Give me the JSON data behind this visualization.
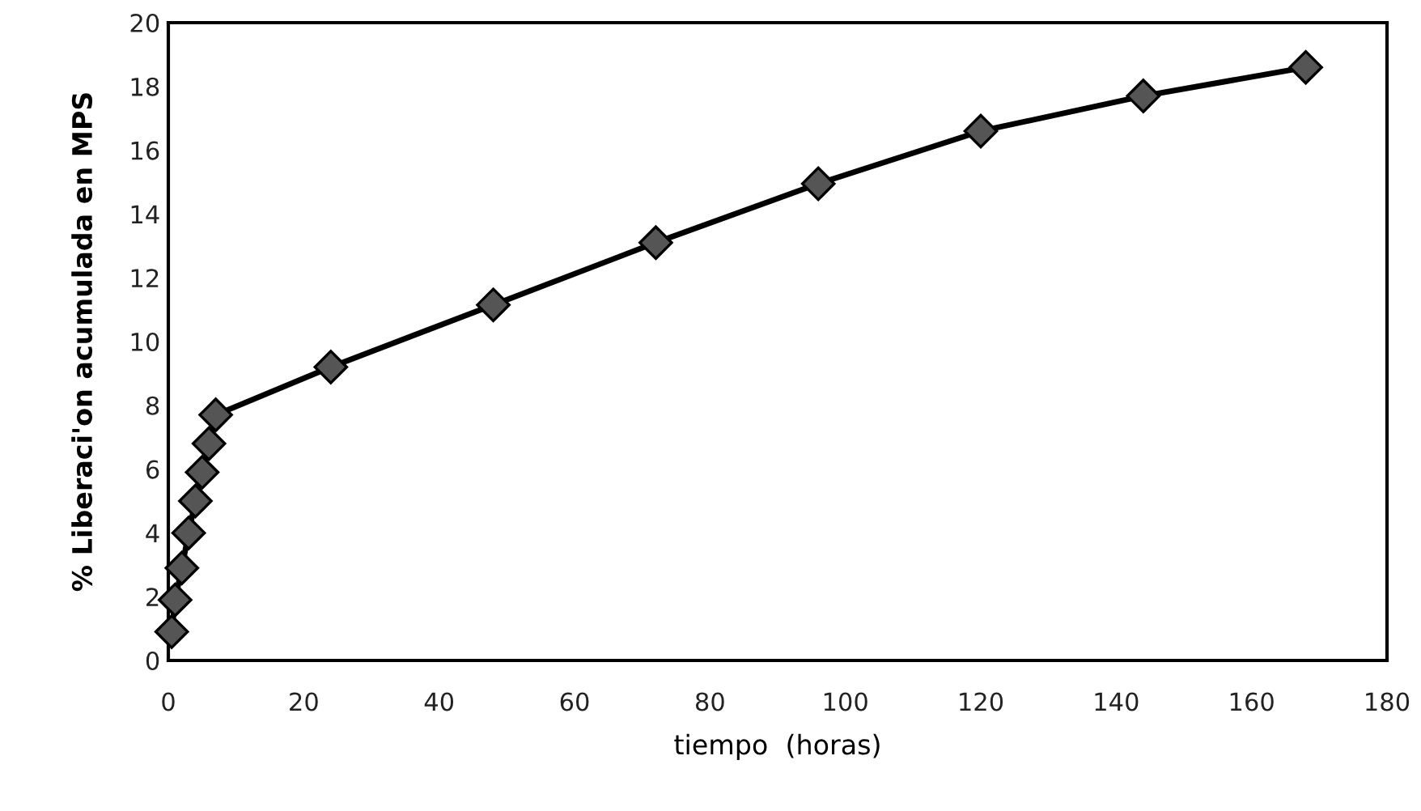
{
  "chart_data": {
    "type": "line",
    "xlabel": "tiempo  (horas)",
    "ylabel": "% Liberaci'on acumulada en MPS",
    "xlim": [
      0,
      180
    ],
    "xticks": [
      0,
      20,
      40,
      60,
      80,
      100,
      120,
      140,
      160,
      180
    ],
    "ylim": [
      0,
      20
    ],
    "yticks": [
      0,
      2,
      4,
      6,
      8,
      10,
      12,
      14,
      16,
      18,
      20
    ],
    "grid": false,
    "legend": false,
    "marker": "diamond",
    "line_style": "solid",
    "series": [
      {
        "color": "#555555",
        "x": [
          0.5,
          1,
          2,
          3,
          4,
          5,
          6,
          7,
          24,
          48,
          72,
          96,
          120,
          144,
          168
        ],
        "values": [
          0.9,
          1.9,
          2.9,
          4.0,
          5.0,
          5.9,
          6.8,
          7.7,
          9.2,
          11.15,
          13.1,
          14.95,
          16.6,
          17.7,
          18.6
        ]
      }
    ]
  }
}
